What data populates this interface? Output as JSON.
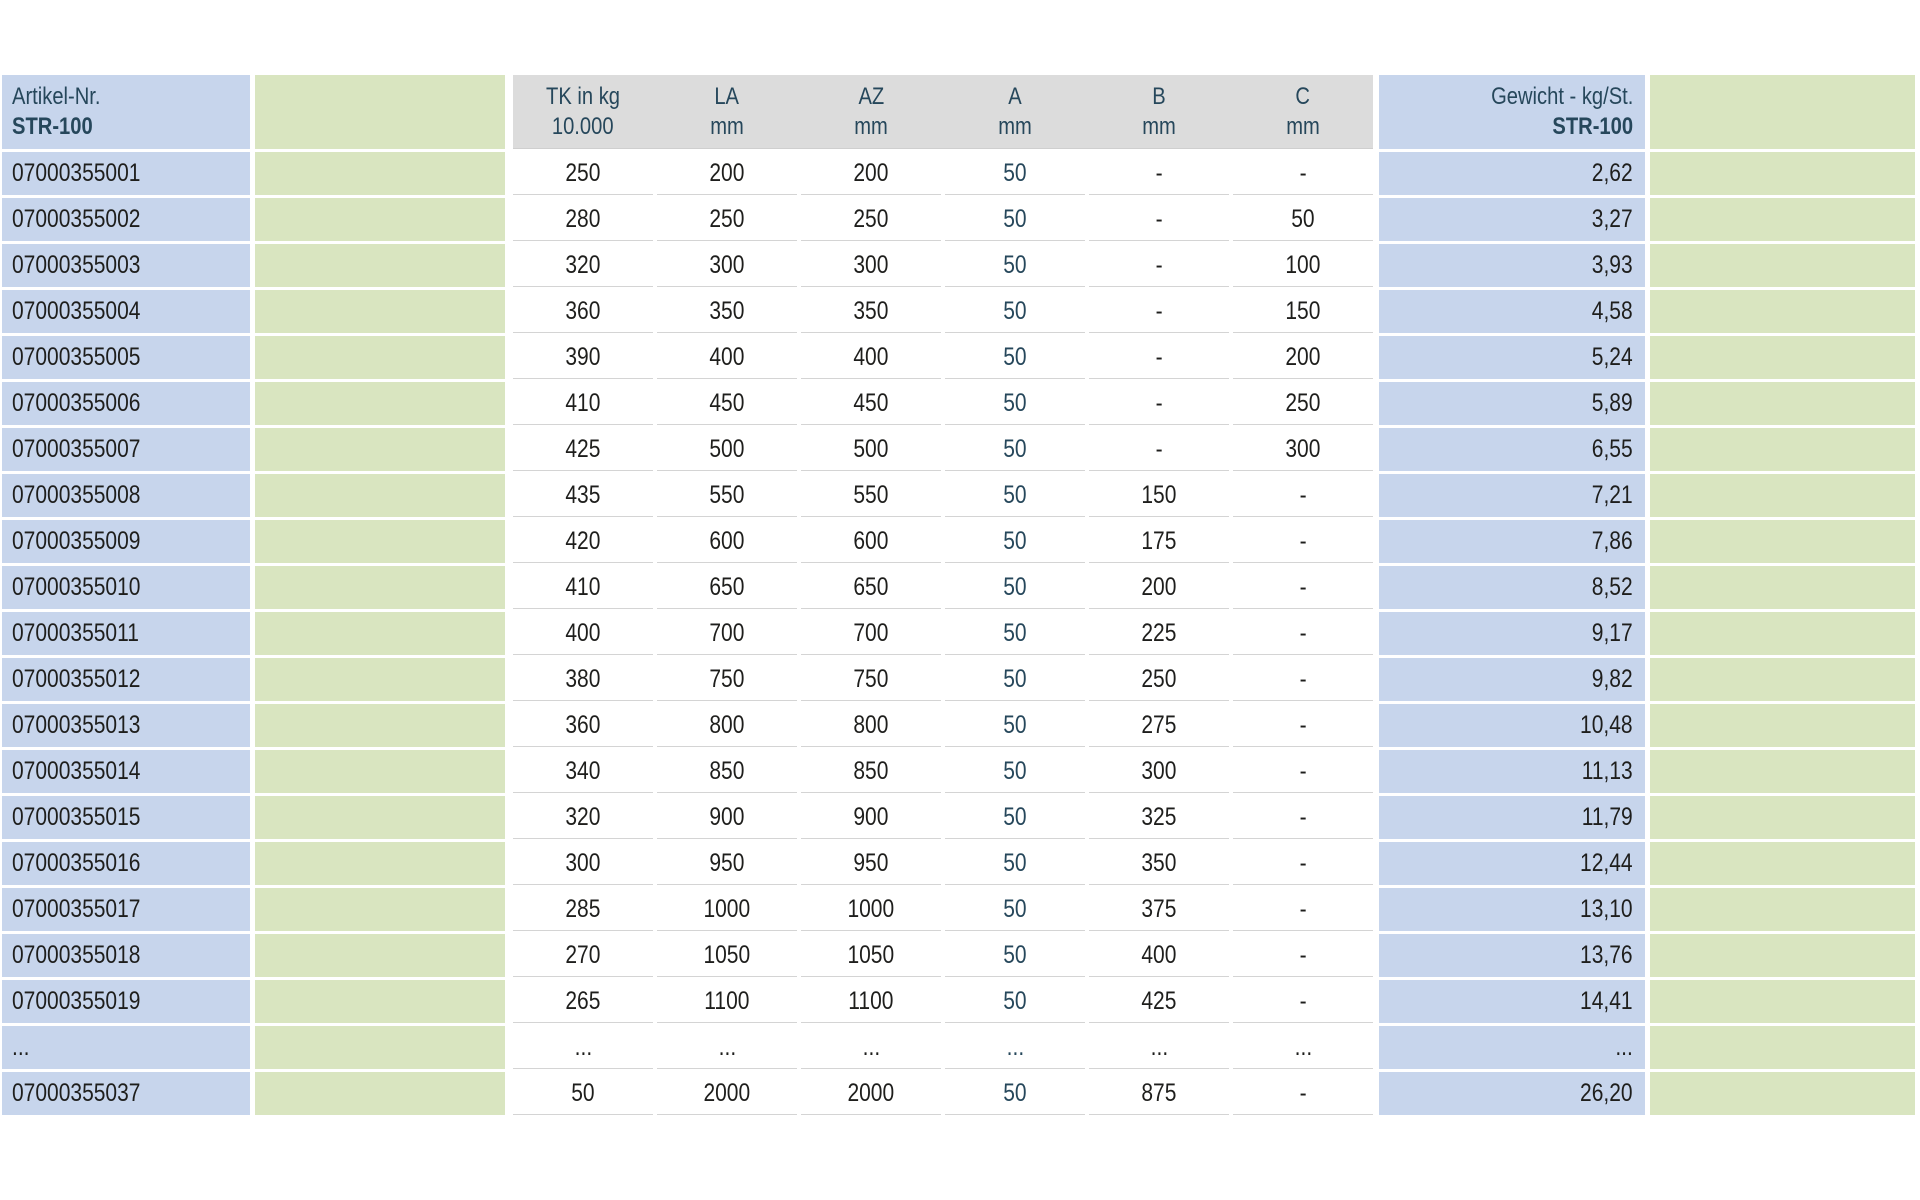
{
  "table": {
    "header": {
      "artikel_line1": "Artikel-Nr.",
      "artikel_line2": "STR-100",
      "spec_columns": [
        {
          "line1": "TK in kg",
          "line2": "10.000"
        },
        {
          "line1": "LA",
          "line2": "mm"
        },
        {
          "line1": "AZ",
          "line2": "mm"
        },
        {
          "line1": "A",
          "line2": "mm"
        },
        {
          "line1": "B",
          "line2": "mm"
        },
        {
          "line1": "C",
          "line2": "mm"
        }
      ],
      "gewicht_line1": "Gewicht - kg/St.",
      "gewicht_line2": "STR-100"
    },
    "rows": [
      {
        "artikel": "07000355001",
        "tk": "250",
        "la": "200",
        "az": "200",
        "a": "50",
        "b": "-",
        "c": "-",
        "gewicht": "2,62"
      },
      {
        "artikel": "07000355002",
        "tk": "280",
        "la": "250",
        "az": "250",
        "a": "50",
        "b": "-",
        "c": "50",
        "gewicht": "3,27"
      },
      {
        "artikel": "07000355003",
        "tk": "320",
        "la": "300",
        "az": "300",
        "a": "50",
        "b": "-",
        "c": "100",
        "gewicht": "3,93"
      },
      {
        "artikel": "07000355004",
        "tk": "360",
        "la": "350",
        "az": "350",
        "a": "50",
        "b": "-",
        "c": "150",
        "gewicht": "4,58"
      },
      {
        "artikel": "07000355005",
        "tk": "390",
        "la": "400",
        "az": "400",
        "a": "50",
        "b": "-",
        "c": "200",
        "gewicht": "5,24"
      },
      {
        "artikel": "07000355006",
        "tk": "410",
        "la": "450",
        "az": "450",
        "a": "50",
        "b": "-",
        "c": "250",
        "gewicht": "5,89"
      },
      {
        "artikel": "07000355007",
        "tk": "425",
        "la": "500",
        "az": "500",
        "a": "50",
        "b": "-",
        "c": "300",
        "gewicht": "6,55"
      },
      {
        "artikel": "07000355008",
        "tk": "435",
        "la": "550",
        "az": "550",
        "a": "50",
        "b": "150",
        "c": "-",
        "gewicht": "7,21"
      },
      {
        "artikel": "07000355009",
        "tk": "420",
        "la": "600",
        "az": "600",
        "a": "50",
        "b": "175",
        "c": "-",
        "gewicht": "7,86"
      },
      {
        "artikel": "07000355010",
        "tk": "410",
        "la": "650",
        "az": "650",
        "a": "50",
        "b": "200",
        "c": "-",
        "gewicht": "8,52"
      },
      {
        "artikel": "07000355011",
        "tk": "400",
        "la": "700",
        "az": "700",
        "a": "50",
        "b": "225",
        "c": "-",
        "gewicht": "9,17"
      },
      {
        "artikel": "07000355012",
        "tk": "380",
        "la": "750",
        "az": "750",
        "a": "50",
        "b": "250",
        "c": "-",
        "gewicht": "9,82"
      },
      {
        "artikel": "07000355013",
        "tk": "360",
        "la": "800",
        "az": "800",
        "a": "50",
        "b": "275",
        "c": "-",
        "gewicht": "10,48"
      },
      {
        "artikel": "07000355014",
        "tk": "340",
        "la": "850",
        "az": "850",
        "a": "50",
        "b": "300",
        "c": "-",
        "gewicht": "11,13"
      },
      {
        "artikel": "07000355015",
        "tk": "320",
        "la": "900",
        "az": "900",
        "a": "50",
        "b": "325",
        "c": "-",
        "gewicht": "11,79"
      },
      {
        "artikel": "07000355016",
        "tk": "300",
        "la": "950",
        "az": "950",
        "a": "50",
        "b": "350",
        "c": "-",
        "gewicht": "12,44"
      },
      {
        "artikel": "07000355017",
        "tk": "285",
        "la": "1000",
        "az": "1000",
        "a": "50",
        "b": "375",
        "c": "-",
        "gewicht": "13,10"
      },
      {
        "artikel": "07000355018",
        "tk": "270",
        "la": "1050",
        "az": "1050",
        "a": "50",
        "b": "400",
        "c": "-",
        "gewicht": "13,76"
      },
      {
        "artikel": "07000355019",
        "tk": "265",
        "la": "1100",
        "az": "1100",
        "a": "50",
        "b": "425",
        "c": "-",
        "gewicht": "14,41"
      },
      {
        "artikel": "...",
        "tk": "...",
        "la": "...",
        "az": "...",
        "a": "...",
        "b": "...",
        "c": "...",
        "gewicht": "..."
      },
      {
        "artikel": "07000355037",
        "tk": "50",
        "la": "2000",
        "az": "2000",
        "a": "50",
        "b": "875",
        "c": "-",
        "gewicht": "26,20"
      }
    ]
  },
  "colors": {
    "column_blue": "#c7d5ec",
    "column_green": "#d9e5c0",
    "header_gray": "#dcdcdc",
    "row_separator": "#d4d4d4",
    "text_dark": "#1e1e1c",
    "text_slate_blue": "#26475b"
  }
}
